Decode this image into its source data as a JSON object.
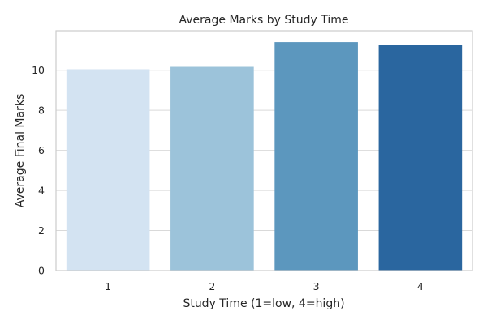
{
  "chart_data": {
    "type": "bar",
    "title": "Average Marks by Study Time",
    "xlabel": "Study Time (1=low, 4=high)",
    "ylabel": "Average Final Marks",
    "categories": [
      "1",
      "2",
      "3",
      "4"
    ],
    "values": [
      10.05,
      10.17,
      11.4,
      11.26
    ],
    "colors": [
      "#d3e3f2",
      "#9cc3da",
      "#5c97be",
      "#2a669f"
    ],
    "ylim": [
      0,
      11.97
    ],
    "yticks": [
      0,
      2,
      4,
      6,
      8,
      10
    ],
    "grid": true,
    "legend": "none"
  }
}
